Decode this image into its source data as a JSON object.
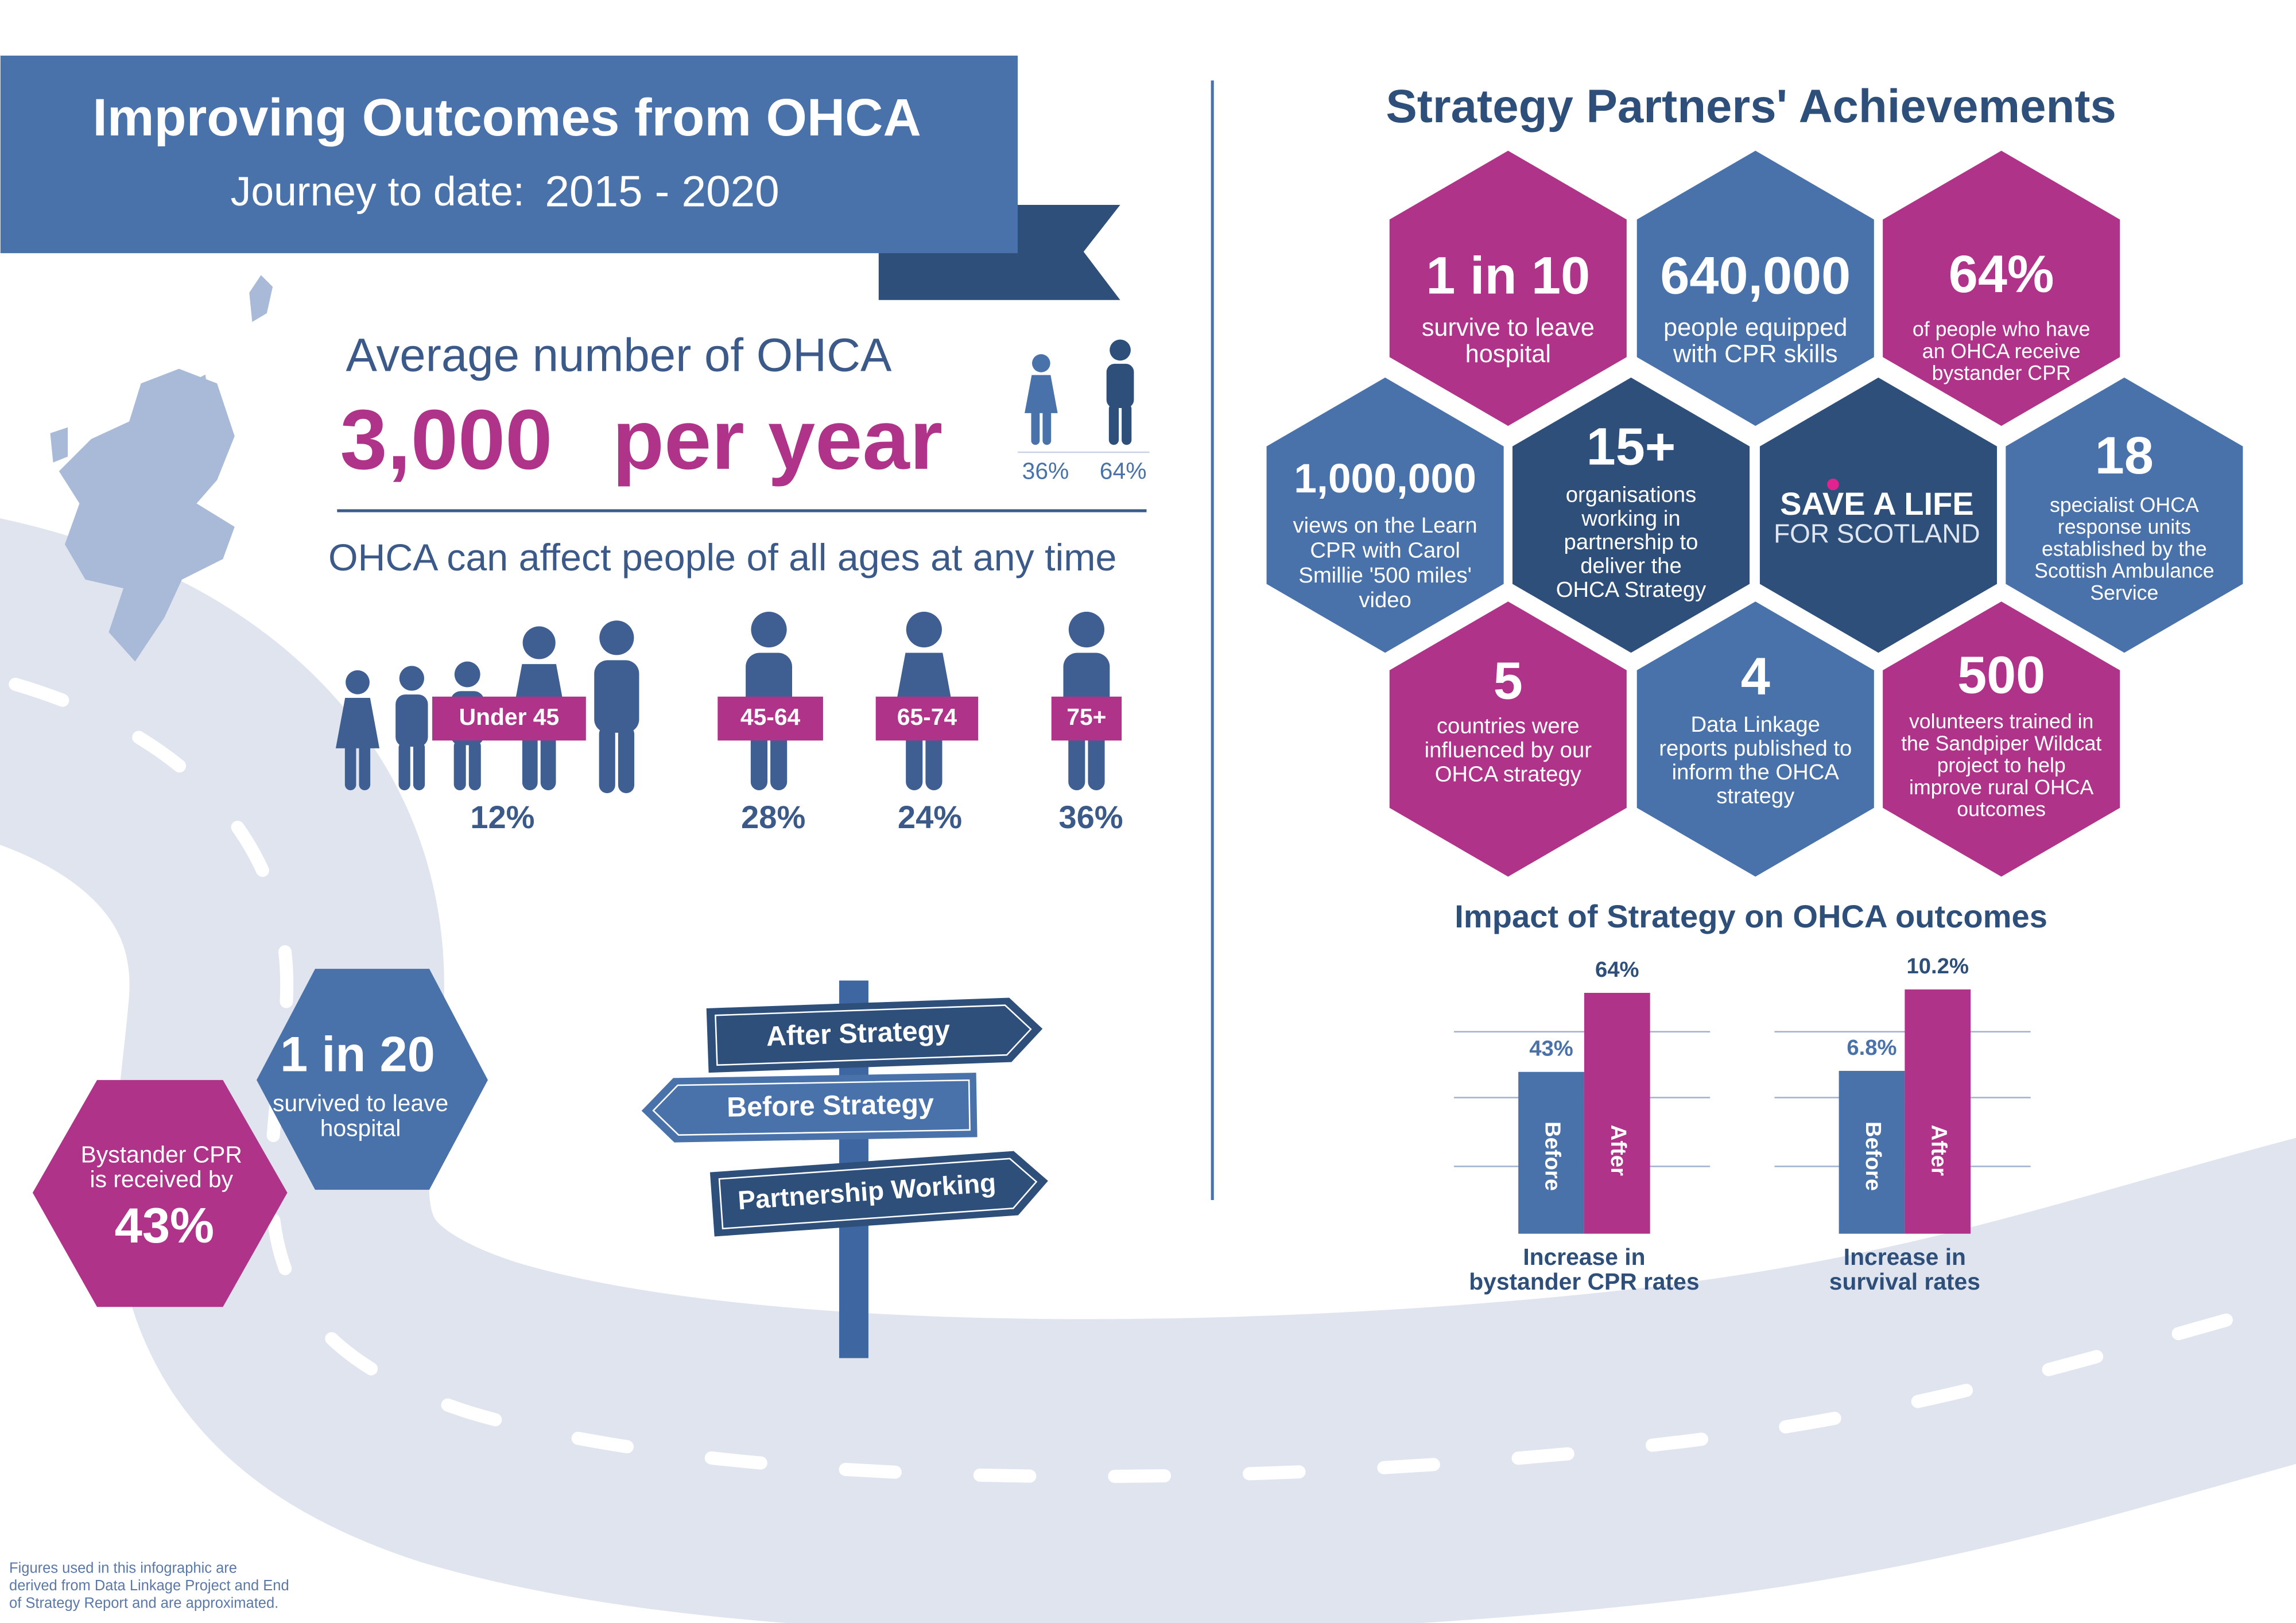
{
  "header": {
    "title": "Improving Outcomes from OHCA",
    "subtitle_label": "Journey to date:",
    "years": "2015 - 2020"
  },
  "incidence": {
    "heading": "Average number of OHCA",
    "number": "3,000",
    "unit": "per year",
    "gender_shares": [
      "36%",
      "64%"
    ]
  },
  "ages": {
    "heading": "OHCA can affect people of all ages at any time",
    "groups": [
      {
        "label": "Under 45",
        "share": "12%"
      },
      {
        "label": "45-64",
        "share": "28%"
      },
      {
        "label": "65-74",
        "share": "24%"
      },
      {
        "label": "75+",
        "share": "36%"
      }
    ]
  },
  "journey": {
    "survival": {
      "figure": "1 in 20",
      "text": [
        "survived to leave",
        "hospital"
      ]
    },
    "bystander": {
      "text": [
        "Bystander CPR",
        "is received by"
      ],
      "figure": "43%"
    }
  },
  "signpost": [
    "After Strategy",
    "Before Strategy",
    "Partnership Working"
  ],
  "achievements": {
    "title": "Strategy Partners' Achievements",
    "hexes": [
      {
        "figure": "1 in 10",
        "text": [
          "survive to leave",
          "hospital"
        ]
      },
      {
        "figure": "640,000",
        "text": [
          "people equipped",
          "with CPR skills"
        ]
      },
      {
        "figure": "64%",
        "text": [
          "of people who have",
          "an OHCA receive",
          "bystander CPR"
        ]
      },
      {
        "figure": "1,000,000",
        "text": [
          "views on the Learn",
          "CPR with Carol",
          "Smillie '500 miles'",
          "video"
        ]
      },
      {
        "figure": "15+",
        "text": [
          "organisations",
          "working in",
          "partnership to",
          "deliver the",
          "OHCA Strategy"
        ]
      },
      {
        "figure": "18",
        "text": [
          "specialist OHCA",
          "response units",
          "established by the",
          "Scottish Ambulance",
          "Service"
        ]
      },
      {
        "figure": "5",
        "text": [
          "countries were",
          "influenced by our",
          "OHCA strategy"
        ]
      },
      {
        "figure": "4",
        "text": [
          "Data Linkage",
          "reports published to",
          "inform the OHCA",
          "strategy"
        ]
      },
      {
        "figure": "500",
        "text": [
          "volunteers trained in",
          "the Sandpiper Wildcat",
          "project to help",
          "improve rural OHCA",
          "outcomes"
        ]
      }
    ],
    "logo": {
      "line1": "SAVE A LIFE",
      "line2": "FOR SCOTLAND"
    }
  },
  "impact": {
    "title": "Impact of Strategy on OHCA outcomes",
    "charts": [
      {
        "type": "bar",
        "bar_labels": [
          "Before",
          "After"
        ],
        "values": [
          43,
          64
        ],
        "value_labels": [
          "43%",
          "64%"
        ],
        "ylim": [
          0,
          70
        ],
        "colors": [
          "#4a72aa",
          "#b0338a"
        ],
        "caption": [
          "Increase in",
          "bystander CPR rates"
        ]
      },
      {
        "type": "bar",
        "bar_labels": [
          "Before",
          "After"
        ],
        "values": [
          6.8,
          10.2
        ],
        "value_labels": [
          "6.8%",
          "10.2%"
        ],
        "ylim": [
          0,
          11
        ],
        "colors": [
          "#4a72aa",
          "#b0338a"
        ],
        "caption": [
          "Increase in",
          "survival rates"
        ]
      }
    ]
  },
  "footnote": [
    "Figures used in this infographic are",
    "derived from Data Linkage Project and End",
    "of Strategy Report and are approximated."
  ]
}
